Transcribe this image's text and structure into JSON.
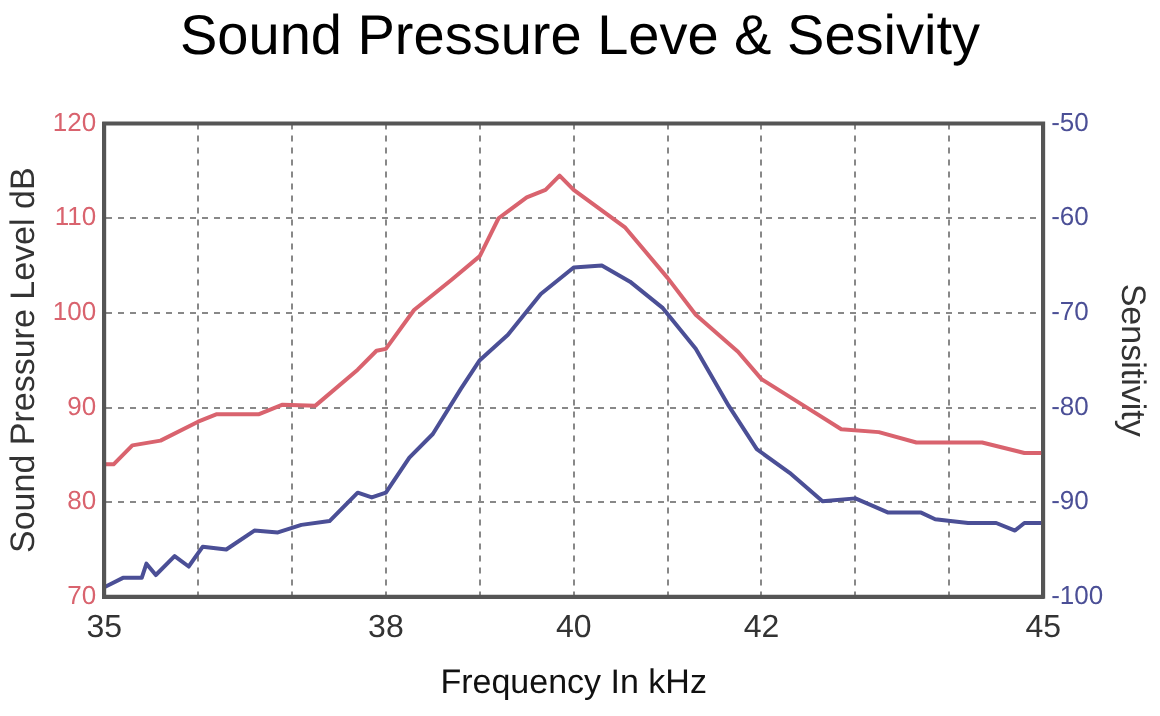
{
  "chart_data": {
    "type": "line",
    "title": "Sound Pressure Leve & Sesivity",
    "xlabel": "Frequency In kHz",
    "ylabel": "Sound Pressure Level dB",
    "y2label": "Sensitivity",
    "xlim": [
      35,
      45
    ],
    "xticks": [
      35,
      {
        "value": 36,
        "label": null
      },
      {
        "value": 37,
        "label": null
      },
      38,
      {
        "value": 39,
        "label": null
      },
      40,
      {
        "value": 41,
        "label": null
      },
      42,
      {
        "value": 43,
        "label": null
      },
      {
        "value": 44,
        "label": null
      },
      45
    ],
    "ylim": [
      70,
      120
    ],
    "yticks": [
      70,
      80,
      90,
      100,
      110,
      120
    ],
    "y2lim": [
      -100,
      -50
    ],
    "y2ticks": [
      -100,
      -90,
      -80,
      -70,
      -60,
      -50
    ],
    "grid": true,
    "marker": "none",
    "line_style": "solid",
    "series": [
      {
        "color": "#d9636e",
        "x": [
          35,
          35.1,
          35.3,
          35.6,
          36.0,
          36.2,
          36.65,
          36.9,
          37.25,
          37.7,
          37.9,
          38.0,
          38.3,
          38.7,
          39.0,
          39.2,
          39.5,
          39.7,
          39.85,
          40.0,
          40.55,
          41.0,
          41.3,
          41.75,
          42.0,
          42.45,
          42.85,
          43.25,
          43.65,
          44.35,
          44.8,
          45
        ],
        "values": [
          84,
          84,
          86,
          86.5,
          88.5,
          89.3,
          89.3,
          90.3,
          90.2,
          94,
          96,
          96.2,
          100.3,
          103.5,
          106,
          110,
          112.2,
          113,
          114.5,
          113,
          109,
          103.7,
          99.8,
          95.9,
          93,
          90.2,
          87.7,
          87.4,
          86.3,
          86.3,
          85.2,
          85.2
        ]
      },
      {
        "color": "#4b4f96",
        "axis": "y2",
        "x": [
          35.0,
          35.2,
          35.4,
          35.45,
          35.55,
          35.75,
          35.9,
          36.05,
          36.3,
          36.6,
          36.85,
          37.1,
          37.4,
          37.7,
          37.85,
          38.0,
          38.25,
          38.5,
          38.8,
          39.0,
          39.3,
          39.65,
          40.0,
          40.3,
          40.6,
          40.95,
          41.3,
          41.65,
          41.95,
          42.3,
          42.65,
          43.0,
          43.35,
          43.7,
          43.85,
          44.2,
          44.5,
          44.7,
          44.8,
          45
        ],
        "values": [
          -99,
          -98,
          -98,
          -96.5,
          -97.7,
          -95.7,
          -96.8,
          -94.7,
          -95,
          -93,
          -93.2,
          -92.4,
          -92,
          -89,
          -89.5,
          -89,
          -85.3,
          -82.8,
          -78,
          -75,
          -72.3,
          -68,
          -65.2,
          -65,
          -66.7,
          -69.5,
          -73.8,
          -79.8,
          -84.4,
          -86.9,
          -89.9,
          -89.6,
          -91.1,
          -91.1,
          -91.8,
          -92.2,
          -92.2,
          -93,
          -92.2,
          -92.2
        ]
      }
    ]
  }
}
